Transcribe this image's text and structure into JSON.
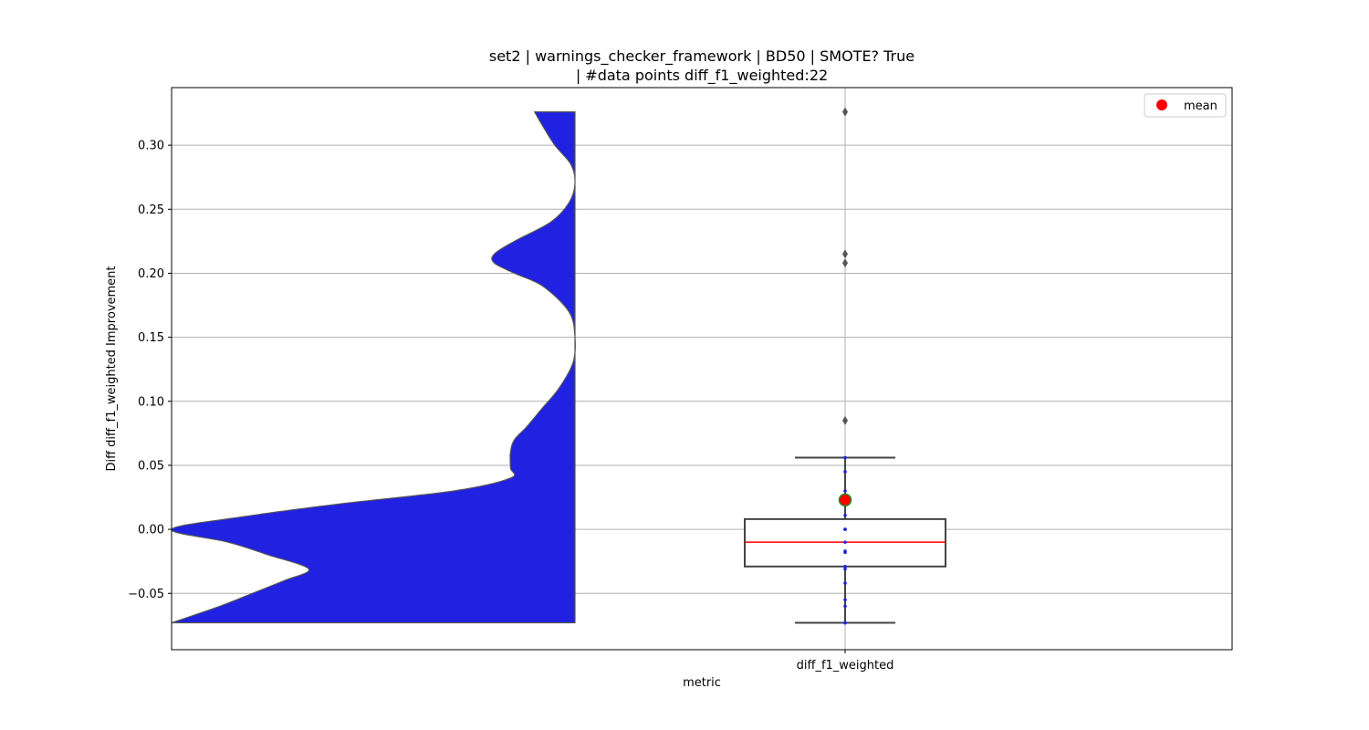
{
  "chart_data": {
    "type": "box",
    "title_lines": [
      "set2 | warnings_checker_framework | BD50 | SMOTE? True",
      "| #data points diff_f1_weighted:22"
    ],
    "xlabel": "metric",
    "ylabel": "Diff diff_f1_weighted Improvement",
    "categories": [
      "diff_f1_weighted"
    ],
    "ylim": [
      -0.094,
      0.345
    ],
    "yticks": [
      -0.05,
      0.0,
      0.05,
      0.1,
      0.15,
      0.2,
      0.25,
      0.3
    ],
    "ytick_labels": [
      "−0.05",
      "0.00",
      "0.05",
      "0.10",
      "0.15",
      "0.20",
      "0.25",
      "0.30"
    ],
    "grid": true,
    "legend": {
      "position": "top-right",
      "entries": [
        {
          "label": "mean",
          "color": "#ff0000"
        }
      ]
    },
    "box": {
      "whisker_low": -0.073,
      "q1": -0.029,
      "median": -0.01,
      "q3": 0.008,
      "whisker_high": 0.056,
      "mean": 0.023,
      "outliers": [
        0.326,
        0.215,
        0.208,
        0.085
      ]
    },
    "points": [
      0.056,
      0.045,
      0.03,
      0.024,
      0.022,
      0.011,
      0.0,
      0.0,
      -0.01,
      -0.017,
      -0.018,
      -0.029,
      -0.031,
      -0.042,
      -0.055,
      -0.06,
      -0.073,
      -0.073
    ],
    "violin": {
      "density": [
        [
          -0.073,
          1.0
        ],
        [
          -0.06,
          0.88
        ],
        [
          -0.05,
          0.8
        ],
        [
          -0.04,
          0.72
        ],
        [
          -0.031,
          0.66
        ],
        [
          -0.02,
          0.76
        ],
        [
          -0.01,
          0.86
        ],
        [
          0.0,
          1.0
        ],
        [
          0.01,
          0.82
        ],
        [
          0.02,
          0.58
        ],
        [
          0.03,
          0.3
        ],
        [
          0.04,
          0.16
        ],
        [
          0.048,
          0.16
        ],
        [
          0.06,
          0.16
        ],
        [
          0.07,
          0.15
        ],
        [
          0.08,
          0.12
        ],
        [
          0.095,
          0.08
        ],
        [
          0.11,
          0.04
        ],
        [
          0.13,
          0.005
        ],
        [
          0.15,
          0.0
        ],
        [
          0.17,
          0.015
        ],
        [
          0.19,
          0.08
        ],
        [
          0.2,
          0.15
        ],
        [
          0.208,
          0.2
        ],
        [
          0.215,
          0.2
        ],
        [
          0.225,
          0.15
        ],
        [
          0.24,
          0.06
        ],
        [
          0.255,
          0.015
        ],
        [
          0.27,
          0.0
        ],
        [
          0.285,
          0.01
        ],
        [
          0.3,
          0.05
        ],
        [
          0.315,
          0.08
        ],
        [
          0.326,
          0.1
        ]
      ]
    },
    "colors": {
      "violin_fill": "#2121e1",
      "violin_edge": "#555555",
      "box_edge": "#444444",
      "median_line": "#ff0000",
      "mean_marker": "#ff0000",
      "mean_marker_edge": "#2a8a2a",
      "points": "#2121e1",
      "outliers": "#555555",
      "grid": "#b0b0b0"
    }
  }
}
